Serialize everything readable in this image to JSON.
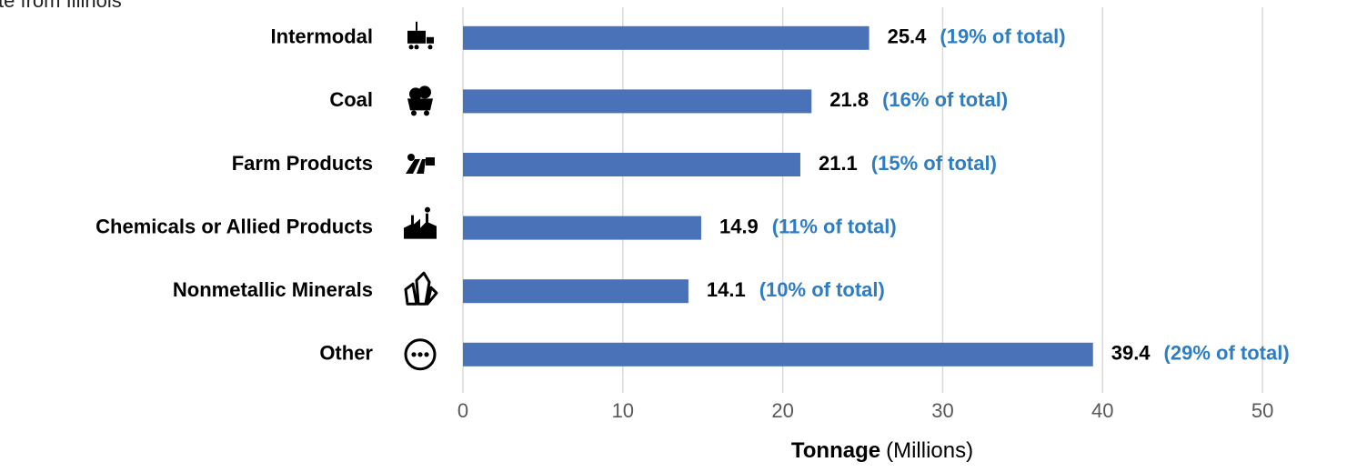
{
  "chart_data": {
    "type": "bar",
    "orientation": "horizontal",
    "title": "te from Illinois",
    "categories": [
      "Intermodal",
      "Coal",
      "Farm Products",
      "Chemicals or Allied Products",
      "Nonmetallic Minerals",
      "Other"
    ],
    "values": [
      25.4,
      21.8,
      21.1,
      14.9,
      14.1,
      39.4
    ],
    "annotations": [
      "(19% of total)",
      "(16% of total)",
      "(15% of total)",
      "(11% of total)",
      "(10% of total)",
      "(29% of total)"
    ],
    "color": "#4a72b8",
    "annotation_color": "#2e7dc2",
    "xlabel": "Tonnage",
    "xlabel_unit": "(Millions)",
    "xlim": [
      0,
      55
    ],
    "xticks": [
      0,
      10,
      20,
      30,
      40,
      50
    ],
    "grid": true
  }
}
